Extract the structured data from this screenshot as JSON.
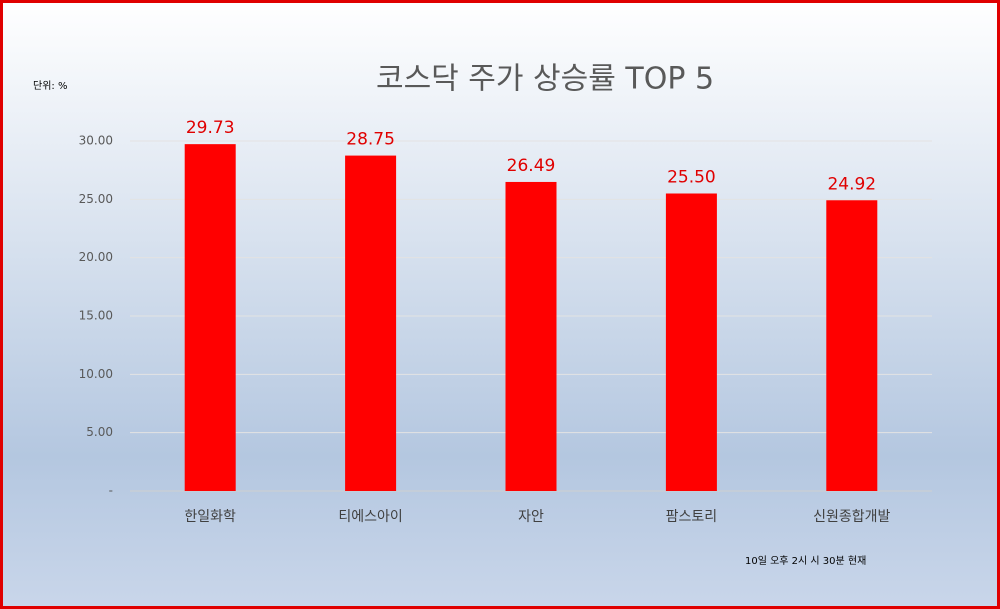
{
  "chart_data": {
    "type": "bar",
    "title": "코스닥 주가 상승률 TOP 5",
    "unit_label": "단위: %",
    "note": "10일 오후 2시 시 30분 현재",
    "categories": [
      "한일화학",
      "티에스아이",
      "자안",
      "팜스토리",
      "신원종합개발"
    ],
    "values": [
      29.73,
      28.75,
      26.49,
      25.5,
      24.92
    ],
    "value_labels": [
      "29.73",
      "28.75",
      "26.49",
      "25.50",
      "24.92"
    ],
    "color": "#ff0000",
    "ylim": [
      0,
      30
    ],
    "yticks": [
      {
        "value": 0,
        "label": "-"
      },
      {
        "value": 5,
        "label": "5.00"
      },
      {
        "value": 10,
        "label": "10.00"
      },
      {
        "value": 15,
        "label": "15.00"
      },
      {
        "value": 20,
        "label": "20.00"
      },
      {
        "value": 25,
        "label": "25.00"
      },
      {
        "value": 30,
        "label": "30.00"
      }
    ],
    "grid": true
  }
}
